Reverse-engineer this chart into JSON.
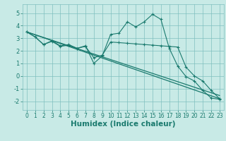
{
  "xlabel": "Humidex (Indice chaleur)",
  "xlim": [
    -0.5,
    23.5
  ],
  "ylim": [
    -2.7,
    5.7
  ],
  "xticks": [
    0,
    1,
    2,
    3,
    4,
    5,
    6,
    7,
    8,
    9,
    10,
    11,
    12,
    13,
    14,
    15,
    16,
    17,
    18,
    19,
    20,
    21,
    22,
    23
  ],
  "yticks": [
    -2,
    -1,
    0,
    1,
    2,
    3,
    4,
    5
  ],
  "bg_color": "#c8eae6",
  "grid_color": "#7fbfbf",
  "line_color": "#1a7a6e",
  "line1_y": [
    3.5,
    3.1,
    2.5,
    2.8,
    2.4,
    2.5,
    2.2,
    2.4,
    1.0,
    1.6,
    3.3,
    3.4,
    4.3,
    3.9,
    4.3,
    4.9,
    4.5,
    2.2,
    0.8,
    -0.05,
    -0.4,
    -1.15,
    -1.75,
    -1.85
  ],
  "line2_y": [
    3.5,
    3.1,
    2.5,
    2.75,
    2.35,
    2.45,
    2.2,
    2.35,
    1.45,
    1.65,
    2.7,
    2.65,
    2.6,
    2.55,
    2.5,
    2.45,
    2.4,
    2.35,
    2.3,
    0.7,
    0.0,
    -0.4,
    -1.15,
    -1.8
  ],
  "line3_y": [
    3.5,
    -1.8
  ],
  "line4_y": [
    3.5,
    -1.55
  ],
  "font_color": "#1a7a6e",
  "tick_fontsize": 5.5,
  "xlabel_fontsize": 7.5
}
